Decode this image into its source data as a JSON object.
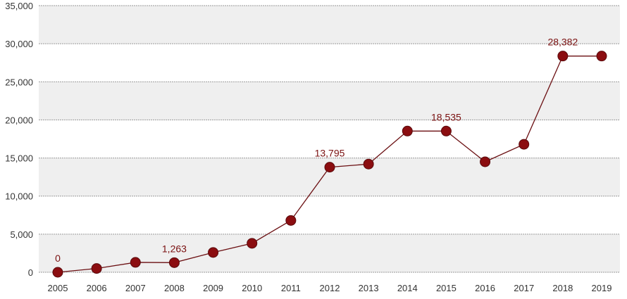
{
  "chart_data": {
    "type": "line",
    "title": "",
    "xlabel": "",
    "ylabel": "",
    "x": [
      "2005",
      "2006",
      "2007",
      "2008",
      "2009",
      "2010",
      "2011",
      "2012",
      "2013",
      "2014",
      "2015",
      "2016",
      "2017",
      "2018",
      "2019"
    ],
    "values": [
      0,
      500,
      1300,
      1263,
      2600,
      3800,
      6800,
      13795,
      14200,
      18535,
      18535,
      14500,
      16800,
      28382,
      28382
    ],
    "point_labels": [
      {
        "index": 0,
        "text": "0"
      },
      {
        "index": 3,
        "text": "1,263"
      },
      {
        "index": 7,
        "text": "13,795"
      },
      {
        "index": 10,
        "text": "18,535"
      },
      {
        "index": 13,
        "text": "28,382"
      }
    ],
    "y_ticks": [
      0,
      5000,
      10000,
      15000,
      20000,
      25000,
      30000,
      35000
    ],
    "y_tick_labels": [
      "0",
      "5,000",
      "10,000",
      "15,000",
      "20,000",
      "25,000",
      "30,000",
      "35,000"
    ],
    "ylim": [
      0,
      35000
    ],
    "grid": true,
    "banded_background": true,
    "legend": "none",
    "colors": {
      "line": "#6b0f12",
      "marker": "#8b0d10",
      "marker_stroke": "#5a0a0c",
      "label": "#7a1010",
      "band": "#efefef",
      "grid": "#9a9a9a"
    }
  }
}
